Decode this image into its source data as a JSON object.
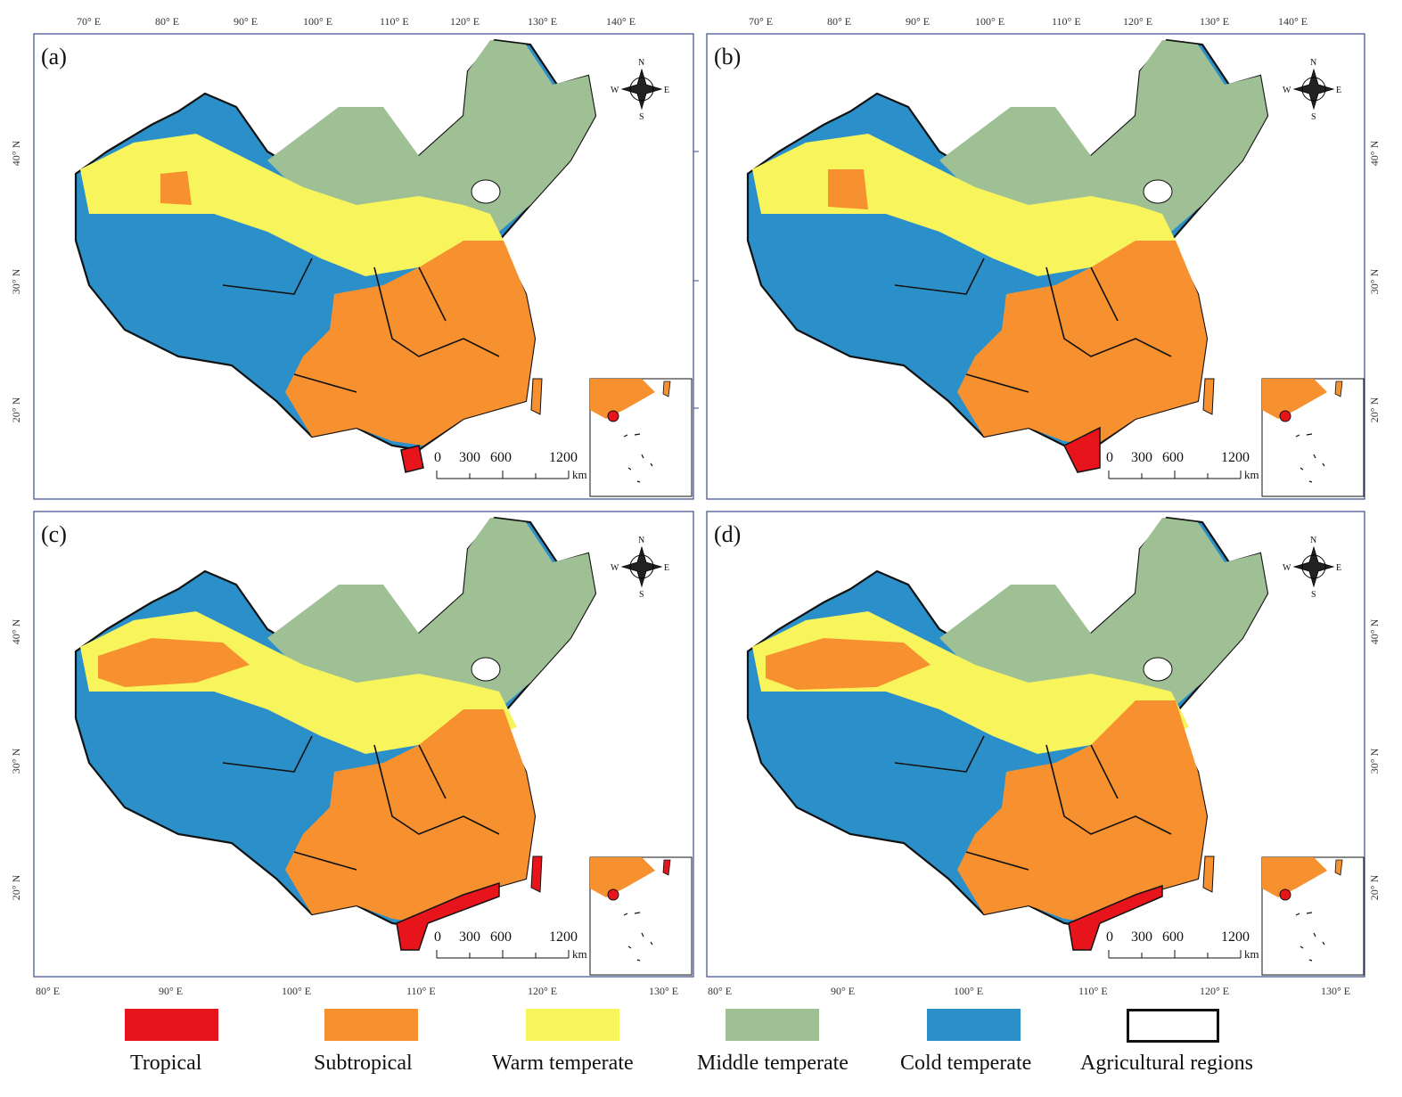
{
  "figure": {
    "panels": [
      {
        "id": "a",
        "label": "(a)"
      },
      {
        "id": "b",
        "label": "(b)"
      },
      {
        "id": "c",
        "label": "(c)"
      },
      {
        "id": "d",
        "label": "(d)"
      }
    ],
    "top_axis_labels": [
      "70° E",
      "80° E",
      "90° E",
      "100° E",
      "110° E",
      "120° E",
      "130° E",
      "140° E"
    ],
    "bottom_axis_labels": [
      "80° E",
      "90° E",
      "100° E",
      "110° E",
      "120° E",
      "130° E"
    ],
    "lat_labels": [
      "40° N",
      "30° N",
      "20° N"
    ],
    "compass": {
      "n": "N",
      "s": "S",
      "e": "E",
      "w": "W"
    },
    "scale": {
      "ticks": [
        "0",
        "300",
        "600",
        "1200"
      ],
      "unit": "km"
    }
  },
  "legend": [
    {
      "label": "Tropical",
      "color": "#e8141b"
    },
    {
      "label": "Subtropical",
      "color": "#f7902f"
    },
    {
      "label": "Warm temperate",
      "color": "#f8f55c"
    },
    {
      "label": "Middle temperate",
      "color": "#9fbf95"
    },
    {
      "label": "Cold temperate",
      "color": "#2b90c9"
    },
    {
      "label": "Agricultural regions",
      "color": "#ffffff"
    }
  ]
}
